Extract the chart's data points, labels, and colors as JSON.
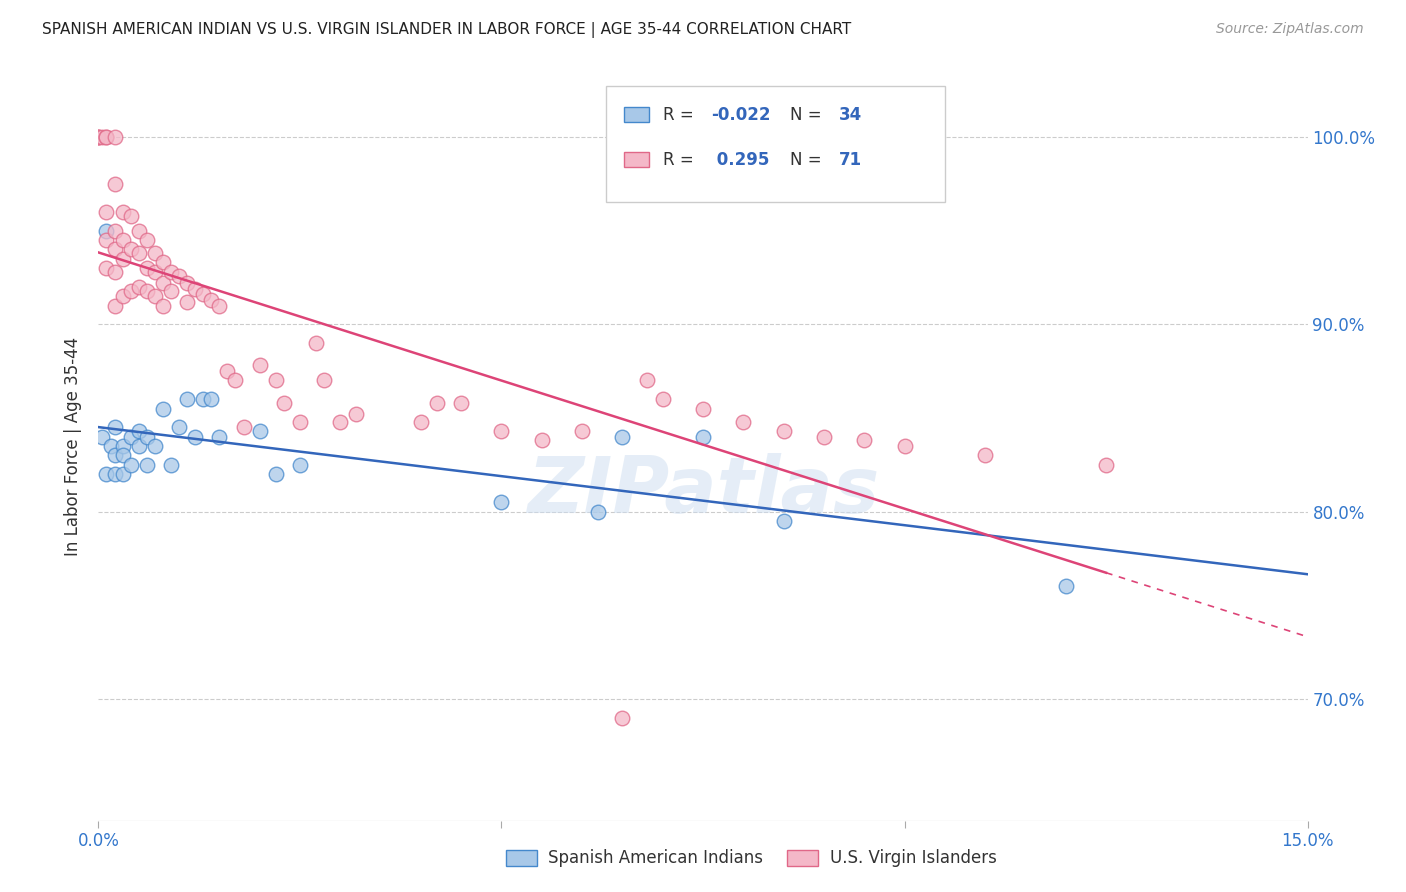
{
  "title": "SPANISH AMERICAN INDIAN VS U.S. VIRGIN ISLANDER IN LABOR FORCE | AGE 35-44 CORRELATION CHART",
  "source": "Source: ZipAtlas.com",
  "ylabel": "In Labor Force | Age 35-44",
  "xlim": [
    0.0,
    0.15
  ],
  "ylim": [
    0.635,
    1.035
  ],
  "xticks": [
    0.0,
    0.05,
    0.1,
    0.15
  ],
  "xtick_labels": [
    "0.0%",
    "",
    "",
    "15.0%"
  ],
  "ytick_labels_right": [
    "70.0%",
    "80.0%",
    "90.0%",
    "100.0%"
  ],
  "yticks": [
    0.7,
    0.8,
    0.9,
    1.0
  ],
  "blue_color": "#a8c8e8",
  "pink_color": "#f4b8c8",
  "blue_edge_color": "#4488cc",
  "pink_edge_color": "#e06888",
  "blue_line_color": "#3366bb",
  "pink_line_color": "#dd4477",
  "watermark": "ZIPatlas",
  "blue_x": [
    0.0005,
    0.001,
    0.001,
    0.0015,
    0.002,
    0.002,
    0.002,
    0.003,
    0.003,
    0.003,
    0.004,
    0.004,
    0.005,
    0.005,
    0.006,
    0.006,
    0.007,
    0.008,
    0.009,
    0.01,
    0.011,
    0.012,
    0.013,
    0.014,
    0.015,
    0.02,
    0.022,
    0.025,
    0.05,
    0.062,
    0.065,
    0.075,
    0.085,
    0.12
  ],
  "blue_y": [
    0.84,
    0.95,
    0.82,
    0.835,
    0.845,
    0.83,
    0.82,
    0.835,
    0.83,
    0.82,
    0.84,
    0.825,
    0.843,
    0.835,
    0.84,
    0.825,
    0.835,
    0.855,
    0.825,
    0.845,
    0.86,
    0.84,
    0.86,
    0.86,
    0.84,
    0.843,
    0.82,
    0.825,
    0.805,
    0.8,
    0.84,
    0.84,
    0.795,
    0.76
  ],
  "pink_x": [
    0.0,
    0.0,
    0.0,
    0.0005,
    0.001,
    0.001,
    0.001,
    0.001,
    0.001,
    0.002,
    0.002,
    0.002,
    0.002,
    0.002,
    0.002,
    0.003,
    0.003,
    0.003,
    0.003,
    0.004,
    0.004,
    0.004,
    0.005,
    0.005,
    0.005,
    0.006,
    0.006,
    0.006,
    0.007,
    0.007,
    0.007,
    0.008,
    0.008,
    0.008,
    0.009,
    0.009,
    0.01,
    0.011,
    0.011,
    0.012,
    0.013,
    0.014,
    0.015,
    0.016,
    0.017,
    0.018,
    0.02,
    0.022,
    0.023,
    0.025,
    0.027,
    0.028,
    0.03,
    0.032,
    0.04,
    0.042,
    0.045,
    0.05,
    0.055,
    0.06,
    0.065,
    0.068,
    0.07,
    0.075,
    0.08,
    0.085,
    0.09,
    0.095,
    0.1,
    0.11,
    0.125
  ],
  "pink_y": [
    1.0,
    1.0,
    1.0,
    1.0,
    1.0,
    1.0,
    0.96,
    0.945,
    0.93,
    1.0,
    0.975,
    0.95,
    0.94,
    0.928,
    0.91,
    0.96,
    0.945,
    0.935,
    0.915,
    0.958,
    0.94,
    0.918,
    0.95,
    0.938,
    0.92,
    0.945,
    0.93,
    0.918,
    0.938,
    0.928,
    0.915,
    0.933,
    0.922,
    0.91,
    0.928,
    0.918,
    0.926,
    0.922,
    0.912,
    0.919,
    0.916,
    0.913,
    0.91,
    0.875,
    0.87,
    0.845,
    0.878,
    0.87,
    0.858,
    0.848,
    0.89,
    0.87,
    0.848,
    0.852,
    0.848,
    0.858,
    0.858,
    0.843,
    0.838,
    0.843,
    0.69,
    0.87,
    0.86,
    0.855,
    0.848,
    0.843,
    0.84,
    0.838,
    0.835,
    0.83,
    0.825
  ],
  "blue_R": -0.022,
  "blue_N": 34,
  "pink_R": 0.295,
  "pink_N": 71
}
